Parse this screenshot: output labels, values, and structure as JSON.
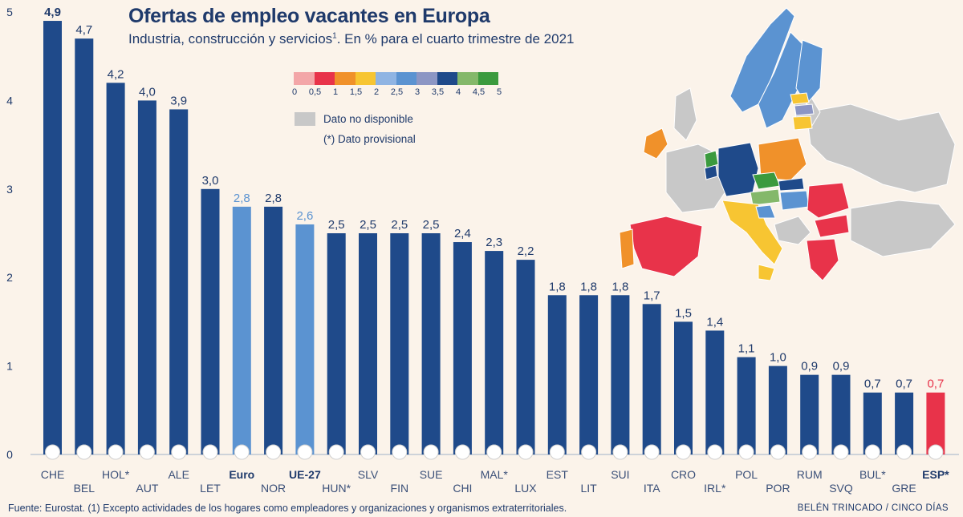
{
  "header": {
    "title": "Ofertas de empleo vacantes en Europa",
    "subtitle_before": "Industria, construcción y servicios",
    "subtitle_sup": "1",
    "subtitle_after": ". En % para el cuarto trimestre de 2021"
  },
  "legend": {
    "scale_labels": [
      "0",
      "0,5",
      "1",
      "1,5",
      "2",
      "2,5",
      "3",
      "3,5",
      "4",
      "4,5",
      "5"
    ],
    "scale_colors": [
      "#f3a6a8",
      "#e8334a",
      "#f0912a",
      "#f7c532",
      "#8fb4e3",
      "#5b93d1",
      "#8c96c4",
      "#1f4a8a",
      "#84b86a",
      "#3b9a3e"
    ],
    "na_label": "Dato no disponible",
    "provisional_label": "(*) Dato provisional"
  },
  "footer": {
    "source": "Fuente: Eurostat. (1) Excepto actividades de los hogares como empleadores y organizaciones y organismos extraterritoriales.",
    "credit": "BELÉN TRINCADO / CINCO DÍAS"
  },
  "colors": {
    "bar_default": "#1f4a8a",
    "bar_aggregate": "#5b93d1",
    "bar_spain": "#e8334a",
    "text": "#1f3a6b"
  },
  "chart_data": {
    "type": "bar",
    "title": "Ofertas de empleo vacantes en Europa",
    "ylim": [
      0,
      5
    ],
    "yticks": [
      0,
      1,
      2,
      3,
      4,
      5
    ],
    "categories": [
      "CHE",
      "BEL",
      "HOL*",
      "AUT",
      "ALE",
      "LET",
      "Euro",
      "NOR",
      "UE-27",
      "HUN*",
      "SLV",
      "FIN",
      "SUE",
      "CHI",
      "MAL*",
      "LUX",
      "EST",
      "LIT",
      "SUI",
      "ITA",
      "CRO",
      "IRL*",
      "POL",
      "POR",
      "RUM",
      "SVQ",
      "BUL*",
      "GRE",
      "ESP*"
    ],
    "values": [
      4.9,
      4.7,
      4.2,
      4.0,
      3.9,
      3.0,
      2.8,
      2.8,
      2.6,
      2.5,
      2.5,
      2.5,
      2.5,
      2.4,
      2.3,
      2.2,
      1.8,
      1.8,
      1.8,
      1.7,
      1.5,
      1.4,
      1.1,
      1.0,
      0.9,
      0.9,
      0.7,
      0.7,
      0.7
    ],
    "value_labels": [
      "4,9",
      "4,7",
      "4,2",
      "4,0",
      "3,9",
      "3,0",
      "2,8",
      "2,8",
      "2,6",
      "2,5",
      "2,5",
      "2,5",
      "2,5",
      "2,4",
      "2,3",
      "2,2",
      "1,8",
      "1,8",
      "1,8",
      "1,7",
      "1,5",
      "1,4",
      "1,1",
      "1,0",
      "0,9",
      "0,9",
      "0,7",
      "0,7",
      "0,7"
    ],
    "highlight": {
      "Euro": "aggregate",
      "UE-27": "aggregate",
      "ESP*": "spain"
    },
    "bold_labels": [
      "CHE",
      "Euro",
      "UE-27",
      "ESP*"
    ],
    "grid": false
  }
}
